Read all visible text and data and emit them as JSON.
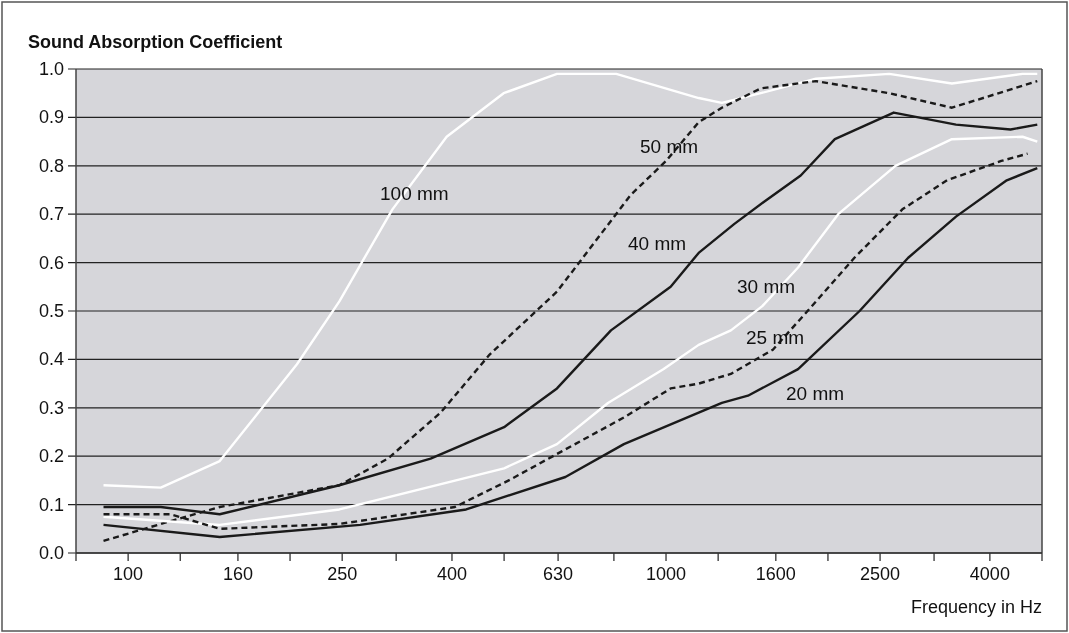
{
  "chart_data": {
    "type": "line",
    "ylabel": "Sound Absorption Coefficient",
    "xlabel": "Frequency in Hz",
    "log": "x",
    "xlim": [
      80,
      5000
    ],
    "xticks": [
      {
        "value": 80,
        "label": null
      },
      100,
      {
        "value": 125,
        "label": null
      },
      160,
      {
        "value": 200,
        "label": null
      },
      250,
      {
        "value": 315,
        "label": null
      },
      400,
      {
        "value": 500,
        "label": null
      },
      630,
      {
        "value": 800,
        "label": null
      },
      1000,
      {
        "value": 1250,
        "label": null
      },
      1600,
      {
        "value": 2000,
        "label": null
      },
      2500,
      {
        "value": 3150,
        "label": null
      },
      4000,
      {
        "value": 5000,
        "label": null
      }
    ],
    "ylim": [
      0,
      1
    ],
    "yticks": [
      {
        "value": 0,
        "label": "0.0"
      },
      {
        "value": 0.1,
        "label": "0.1"
      },
      {
        "value": 0.2,
        "label": "0.2"
      },
      {
        "value": 0.3,
        "label": "0.3"
      },
      {
        "value": 0.4,
        "label": "0.4"
      },
      {
        "value": 0.5,
        "label": "0.5"
      },
      {
        "value": 0.6,
        "label": "0.6"
      },
      {
        "value": 0.7,
        "label": "0.7"
      },
      {
        "value": 0.8,
        "label": "0.8"
      },
      {
        "value": 0.9,
        "label": "0.9"
      },
      {
        "value": 1,
        "label": "1.0"
      }
    ],
    "grid": "y",
    "series": [
      {
        "name": "100 mm",
        "color": "#ffffff",
        "line_style": "solid",
        "x": [
          90,
          115,
          148,
          206,
          247,
          310,
          391,
          499,
          627,
          808,
          1150,
          1270,
          1500,
          1900,
          2600,
          3400,
          4600,
          4900
        ],
        "values": [
          0.14,
          0.135,
          0.19,
          0.39,
          0.52,
          0.71,
          0.86,
          0.95,
          0.99,
          0.99,
          0.94,
          0.93,
          0.95,
          0.98,
          0.99,
          0.97,
          0.99,
          0.99
        ]
      },
      {
        "name": "50 mm",
        "color": "#1a1a1a",
        "line_style": "dashed",
        "x": [
          90,
          120,
          148,
          247,
          304,
          381,
          470,
          627,
          860,
          1000,
          1150,
          1270,
          1500,
          1900,
          2600,
          3400,
          4900
        ],
        "values": [
          0.025,
          0.066,
          0.095,
          0.14,
          0.195,
          0.29,
          0.41,
          0.54,
          0.74,
          0.81,
          0.89,
          0.92,
          0.96,
          0.975,
          0.95,
          0.92,
          0.975
        ]
      },
      {
        "name": "40 mm",
        "color": "#1a1a1a",
        "line_style": "solid",
        "x": [
          90,
          115,
          148,
          247,
          365,
          500,
          627,
          790,
          1020,
          1150,
          1340,
          1540,
          1780,
          2060,
          2650,
          3460,
          4370,
          4900
        ],
        "values": [
          0.095,
          0.095,
          0.08,
          0.14,
          0.195,
          0.26,
          0.34,
          0.46,
          0.55,
          0.62,
          0.68,
          0.73,
          0.78,
          0.855,
          0.91,
          0.885,
          0.875,
          0.885
        ]
      },
      {
        "name": "30 mm",
        "color": "#ffffff",
        "line_style": "solid",
        "x": [
          90,
          148,
          247,
          500,
          627,
          780,
          990,
          1150,
          1320,
          1510,
          1760,
          2090,
          2670,
          3400,
          4600,
          4900
        ],
        "values": [
          0.075,
          0.058,
          0.09,
          0.175,
          0.225,
          0.31,
          0.38,
          0.43,
          0.46,
          0.51,
          0.59,
          0.7,
          0.8,
          0.855,
          0.86,
          0.85
        ]
      },
      {
        "name": "25 mm",
        "color": "#1a1a1a",
        "line_style": "dashed",
        "x": [
          90,
          120,
          148,
          247,
          405,
          510,
          640,
          835,
          1020,
          1150,
          1320,
          1580,
          1850,
          2240,
          2750,
          3330,
          4200,
          4700
        ],
        "values": [
          0.08,
          0.08,
          0.05,
          0.06,
          0.095,
          0.15,
          0.21,
          0.28,
          0.34,
          0.35,
          0.37,
          0.42,
          0.505,
          0.61,
          0.71,
          0.77,
          0.81,
          0.825
        ]
      },
      {
        "name": "20 mm",
        "color": "#1a1a1a",
        "line_style": "solid",
        "x": [
          90,
          148,
          270,
          425,
          650,
          835,
          1150,
          1270,
          1420,
          1760,
          2290,
          2820,
          3460,
          4300,
          4900
        ],
        "values": [
          0.058,
          0.033,
          0.058,
          0.09,
          0.157,
          0.225,
          0.29,
          0.31,
          0.325,
          0.38,
          0.5,
          0.61,
          0.695,
          0.77,
          0.795
        ]
      }
    ]
  }
}
